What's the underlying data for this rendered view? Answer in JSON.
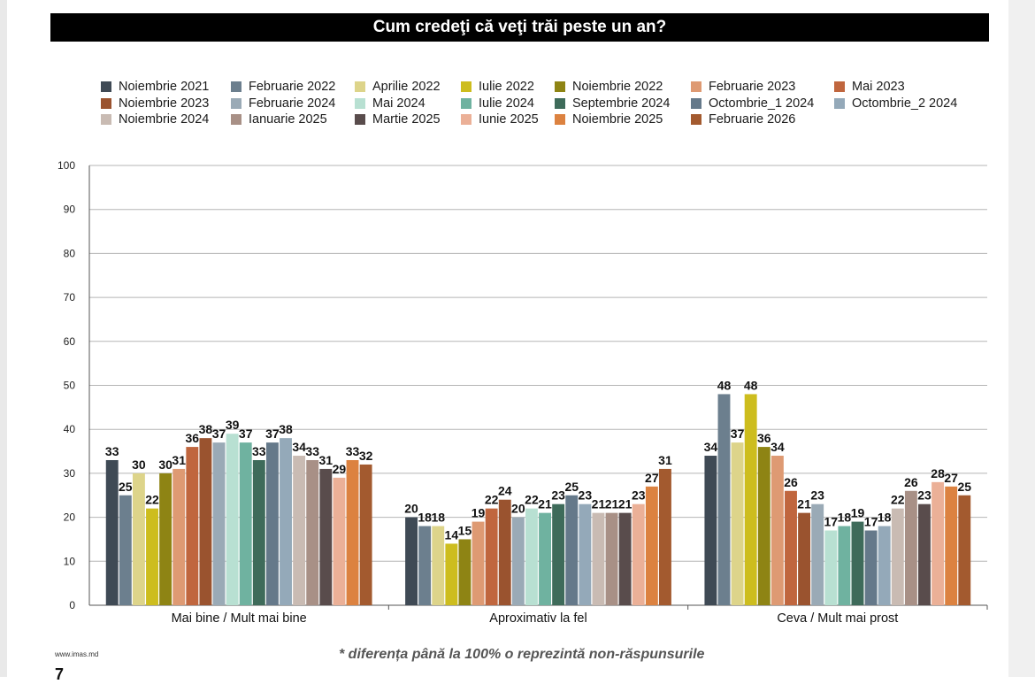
{
  "title": "Cum credeţi că veţi trăi peste un an?",
  "footer": {
    "url": "www.imas.md",
    "note": "* diferența până la 100% o reprezintă non-răspunsurile",
    "page_number": "7"
  },
  "chart_data": {
    "type": "bar",
    "categories": [
      "Mai bine / Mult mai bine",
      "Aproximativ la fel",
      "Ceva  / Mult mai prost"
    ],
    "ylim": [
      0,
      100
    ],
    "yticks": [
      0,
      10,
      20,
      30,
      40,
      50,
      60,
      70,
      80,
      90,
      100
    ],
    "grid": true,
    "legend_position": "top",
    "series": [
      {
        "name": "Noiembrie 2021",
        "color": "#3f4a55",
        "values": [
          33,
          20,
          34
        ]
      },
      {
        "name": "Februarie 2022",
        "color": "#6c7f8e",
        "values": [
          25,
          18,
          48
        ]
      },
      {
        "name": "Aprilie 2022",
        "color": "#ddd48a",
        "values": [
          30,
          18,
          37
        ]
      },
      {
        "name": "Iulie 2022",
        "color": "#cdbd1e",
        "values": [
          22,
          14,
          48
        ]
      },
      {
        "name": "Noiembrie 2022",
        "color": "#8e8414",
        "values": [
          30,
          15,
          36
        ]
      },
      {
        "name": "Februarie 2023",
        "color": "#de9a73",
        "values": [
          31,
          19,
          34
        ]
      },
      {
        "name": "Mai 2023",
        "color": "#c0663e",
        "values": [
          36,
          22,
          26
        ]
      },
      {
        "name": "Noiembrie 2023",
        "color": "#9a532f",
        "values": [
          38,
          24,
          21
        ]
      },
      {
        "name": "Februarie 2024",
        "color": "#9aaab6",
        "values": [
          37,
          20,
          23
        ]
      },
      {
        "name": "Mai 2024",
        "color": "#b8e0d2",
        "values": [
          39,
          22,
          17
        ]
      },
      {
        "name": "Iulie 2024",
        "color": "#6fb2a0",
        "values": [
          37,
          21,
          18
        ]
      },
      {
        "name": "Septembrie 2024",
        "color": "#3e6b5a",
        "values": [
          33,
          23,
          19
        ]
      },
      {
        "name": "Octombrie_1 2024",
        "color": "#65798a",
        "values": [
          37,
          25,
          17
        ]
      },
      {
        "name": "Octombrie_2 2024",
        "color": "#94a9b9",
        "values": [
          38,
          23,
          18
        ]
      },
      {
        "name": "Noiembrie 2024",
        "color": "#c9bbb3",
        "values": [
          34,
          21,
          22
        ]
      },
      {
        "name": "Ianuarie 2025",
        "color": "#a89086",
        "values": [
          33,
          21,
          26
        ]
      },
      {
        "name": "Martie 2025",
        "color": "#594c4c",
        "values": [
          31,
          21,
          23
        ]
      },
      {
        "name": "Iunie 2025",
        "color": "#ebb097",
        "values": [
          29,
          23,
          28
        ]
      },
      {
        "name": "Noiembrie 2025",
        "color": "#dc8240",
        "values": [
          33,
          27,
          27
        ]
      },
      {
        "name": "Februarie 2026",
        "color": "#a35a2f",
        "values": [
          32,
          31,
          25
        ]
      }
    ]
  }
}
